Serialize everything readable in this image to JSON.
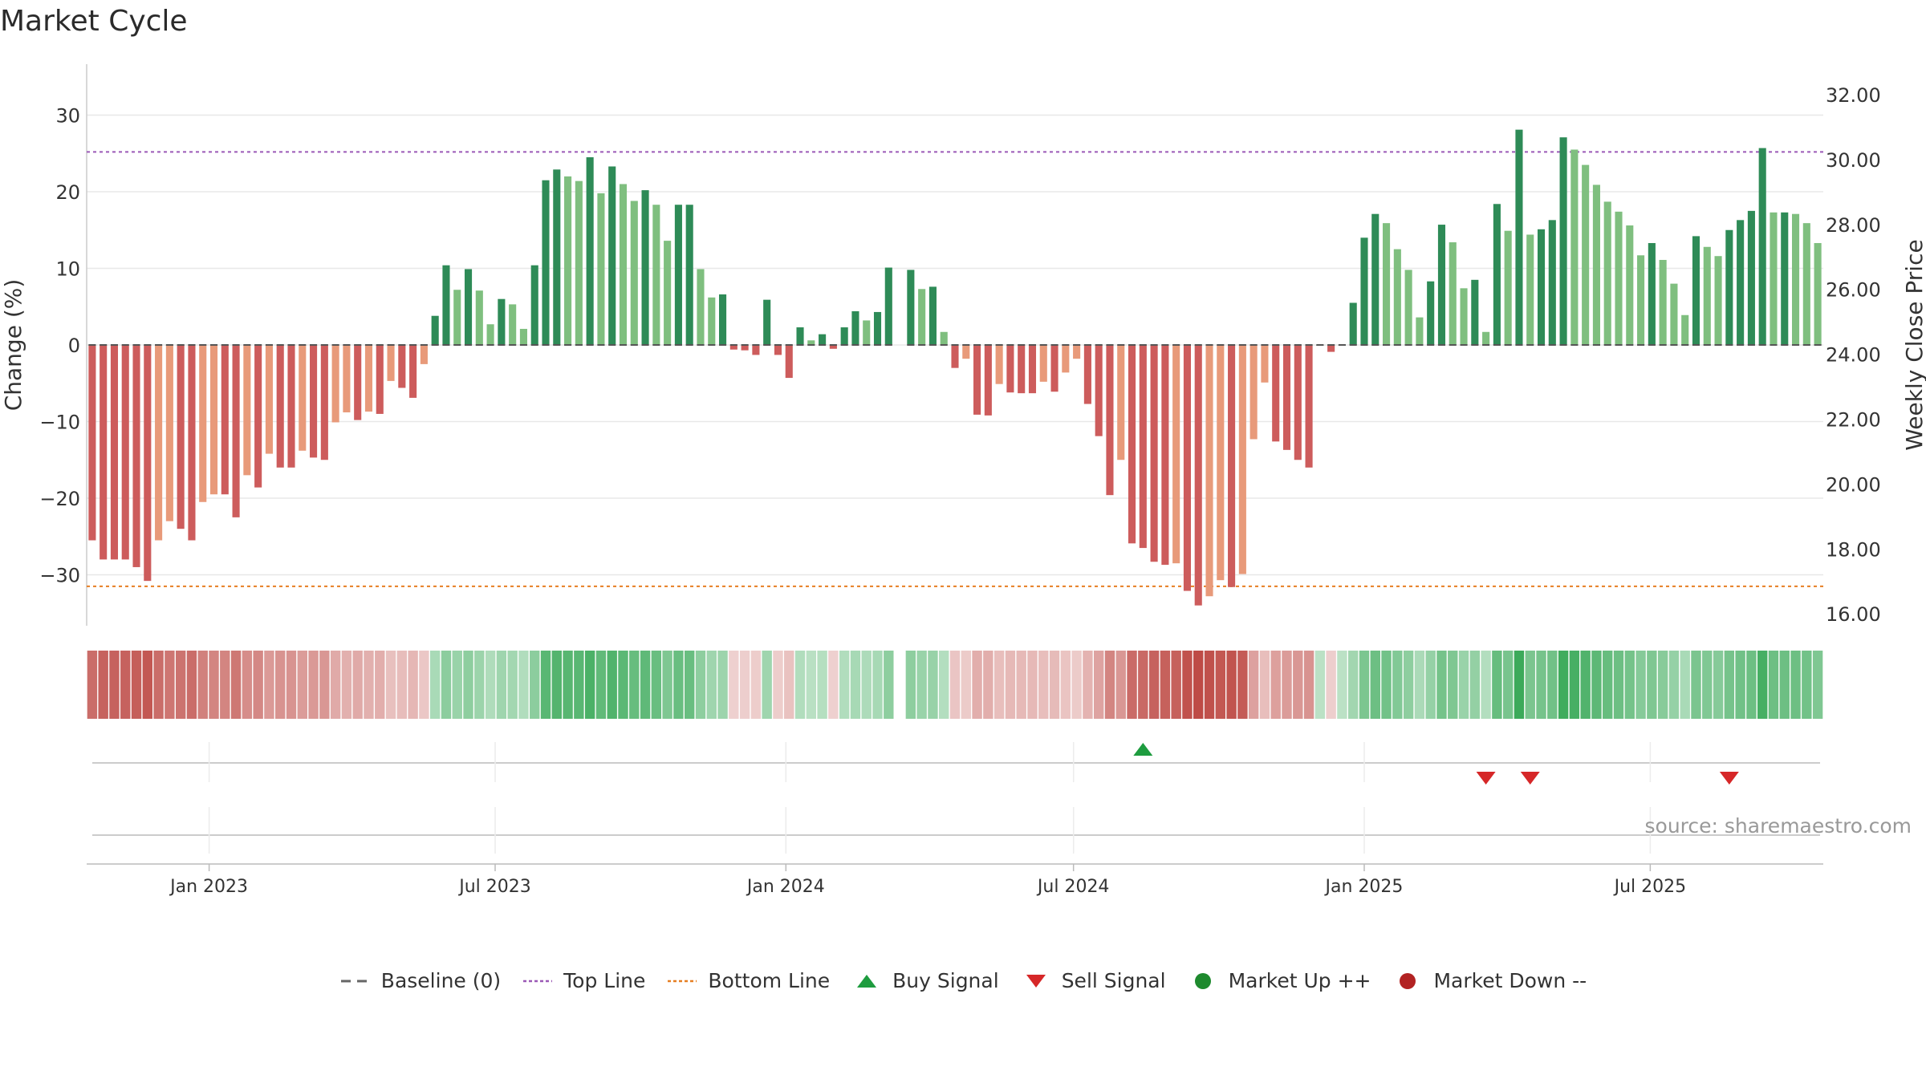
{
  "title": "Market Cycle",
  "source": "source: sharemaestro.com",
  "legend": [
    {
      "label": "Baseline (0)",
      "symbol": "dash",
      "color": "#666666"
    },
    {
      "label": "Top Line",
      "symbol": "dot-line",
      "color": "#9b59b6"
    },
    {
      "label": "Bottom Line",
      "symbol": "dot-line",
      "color": "#e67e22"
    },
    {
      "label": "Buy Signal",
      "symbol": "triangle-up",
      "color": "#1e9c3f"
    },
    {
      "label": "Sell Signal",
      "symbol": "triangle-down",
      "color": "#d62728"
    },
    {
      "label": "Market Up ++",
      "symbol": "circle",
      "color": "#1e8a2e"
    },
    {
      "label": "Market Down --",
      "symbol": "circle",
      "color": "#b22222"
    }
  ],
  "chart_data": {
    "type": "bar",
    "y_left_label": "Change (%)",
    "y_right_label": "Weekly Close Price",
    "y_left_ticks": [
      30,
      20,
      10,
      0,
      -10,
      -20,
      -30
    ],
    "y_left_tick_labels": [
      "30",
      "20",
      "10",
      "0",
      "−10",
      "−20",
      "−30"
    ],
    "y_left_range": [
      -37,
      37
    ],
    "y_right_ticks": [
      "32.00",
      "30.00",
      "28.00",
      "26.00",
      "24.00",
      "22.00",
      "20.00",
      "18.00",
      "16.00"
    ],
    "top_line": 25.2,
    "bottom_line": -31.5,
    "x_ticks": [
      "Jan 2023",
      "Jul 2023",
      "Jan 2024",
      "Jul 2024",
      "Jan 2025",
      "Jul 2025"
    ],
    "start_date": "2022-10-19",
    "values": [
      -25.5,
      -28,
      -28,
      -28,
      -29,
      -30.8,
      -25.5,
      -23,
      -24,
      -25.5,
      -20.5,
      -19.5,
      -19.5,
      -22.5,
      -17,
      -18.6,
      -14.2,
      -16,
      -16,
      -13.8,
      -14.7,
      -15,
      -10.1,
      -8.8,
      -9.8,
      -8.7,
      -9,
      -4.7,
      -5.6,
      -6.9,
      -2.5,
      3.8,
      10.4,
      7.2,
      9.9,
      7.1,
      2.7,
      6,
      5.3,
      2.1,
      10.4,
      21.5,
      22.9,
      22,
      21.4,
      24.5,
      19.8,
      23.3,
      21,
      18.8,
      20.2,
      18.3,
      13.6,
      18.3,
      18.3,
      9.9,
      6.2,
      6.6,
      -0.6,
      -0.7,
      -1.3,
      5.9,
      -1.3,
      -4.3,
      2.3,
      0.6,
      1.4,
      -0.5,
      2.3,
      4.4,
      3.2,
      4.3,
      10.1,
      null,
      9.8,
      7.3,
      7.6,
      1.7,
      -3,
      -1.8,
      -9.1,
      -9.2,
      -5.1,
      -6.2,
      -6.3,
      -6.3,
      -4.8,
      -6.1,
      -3.6,
      -1.8,
      -7.7,
      -11.9,
      -19.6,
      -15,
      -25.9,
      -26.5,
      -28.3,
      -28.7,
      -28.5,
      -32.1,
      -34,
      -32.8,
      -30.7,
      -31.6,
      -29.9,
      -12.3,
      -4.9,
      -12.6,
      -13.7,
      -15,
      -16,
      0,
      -0.9,
      0,
      5.5,
      14,
      17.1,
      15.9,
      12.5,
      9.8,
      3.6,
      8.3,
      15.7,
      13.4,
      7.4,
      8.5,
      1.7,
      18.4,
      14.9,
      28.1,
      14.4,
      15.1,
      16.3,
      27.1,
      25.5,
      23.5,
      20.9,
      18.7,
      17.4,
      15.6,
      11.7,
      13.3,
      11.1,
      8,
      3.9,
      14.2,
      12.8,
      11.6,
      15,
      16.3,
      17.5,
      25.7,
      17.3,
      17.3,
      17.1,
      15.9,
      13.3
    ],
    "buy_signals": [
      "2024-08-14"
    ],
    "sell_signals": [
      "2025-03-19",
      "2025-04-16",
      "2025-08-20"
    ]
  }
}
